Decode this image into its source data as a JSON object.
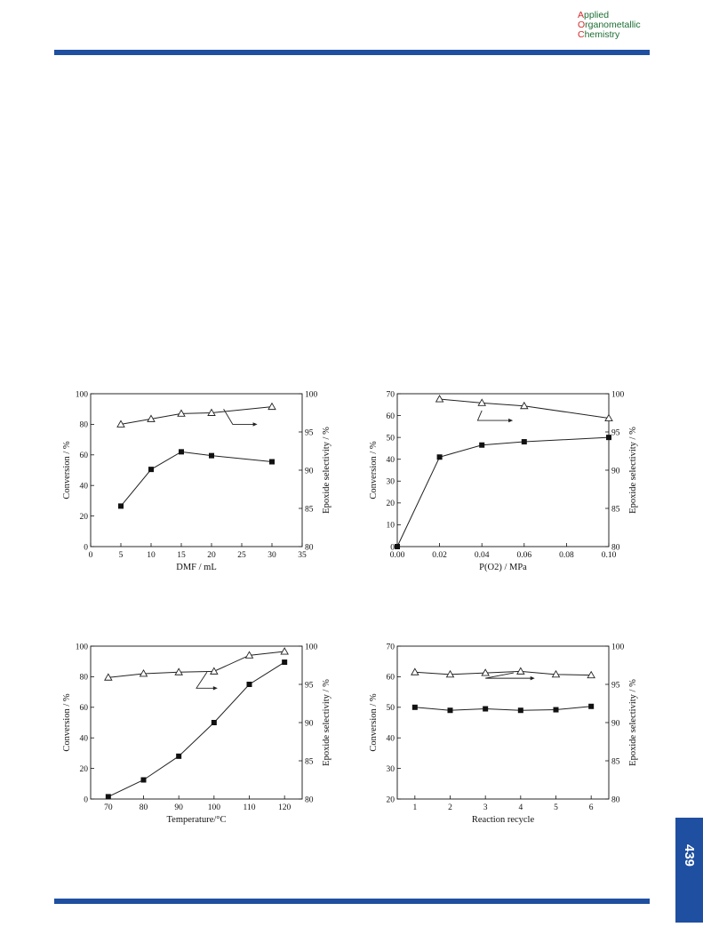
{
  "journal": {
    "line1_cap": "A",
    "line1_rest": "pplied",
    "line2_cap": "O",
    "line2_rest": "rganometallic",
    "line3_cap": "C",
    "line3_rest": "hemistry"
  },
  "page_number": "439",
  "colors": {
    "bar": "#1f4fa0",
    "journal_text": "#1b6e33",
    "journal_caps": "#d22a2a"
  },
  "chart_data": [
    {
      "type": "line",
      "xlabel": "DMF / mL",
      "ylabel": "Conversion / %",
      "y2label": "Epoxide selectivity / %",
      "xlim": [
        0,
        35
      ],
      "xticks": [
        0,
        5,
        10,
        15,
        20,
        25,
        30,
        35
      ],
      "ylim": [
        0,
        100
      ],
      "yticks": [
        0,
        20,
        40,
        60,
        80,
        100
      ],
      "y2lim": [
        80,
        100
      ],
      "y2ticks": [
        80,
        85,
        90,
        95,
        100
      ],
      "arrow_direction": "right",
      "series": [
        {
          "axis": "left",
          "marker": "filled-square",
          "x": [
            5,
            10,
            15,
            20,
            30
          ],
          "values": [
            26.5,
            50.5,
            62,
            59.5,
            55.5
          ]
        },
        {
          "axis": "right",
          "marker": "open-triangle",
          "x": [
            5,
            10,
            15,
            20,
            30
          ],
          "values": [
            96,
            96.7,
            97.4,
            97.5,
            98.3
          ]
        }
      ],
      "arrow": {
        "x1": 22,
        "y1": 98,
        "x2": 23.5,
        "y2": 96,
        "x3": 27,
        "y3": 96
      }
    },
    {
      "type": "line",
      "xlabel": "P(O2) / MPa",
      "ylabel": "Conversion / %",
      "y2label": "Epoxide selectivity / %",
      "xlim": [
        0,
        0.1
      ],
      "xticks": [
        0.0,
        0.02,
        0.04,
        0.06,
        0.08,
        0.1
      ],
      "xtick_labels": [
        "0.00",
        "0.02",
        "0.04",
        "0.06",
        "0.08",
        "0.10"
      ],
      "ylim": [
        0,
        70
      ],
      "yticks": [
        0,
        10,
        20,
        30,
        40,
        50,
        60,
        70
      ],
      "y2lim": [
        80,
        100
      ],
      "y2ticks": [
        80,
        85,
        90,
        95,
        100
      ],
      "series": [
        {
          "axis": "left",
          "marker": "filled-square",
          "x": [
            0.0,
            0.02,
            0.04,
            0.06,
            0.1
          ],
          "values": [
            0,
            41,
            46.5,
            48,
            50
          ]
        },
        {
          "axis": "right",
          "marker": "open-triangle",
          "x": [
            0.02,
            0.04,
            0.06,
            0.1
          ],
          "values": [
            99.3,
            98.8,
            98.4,
            96.8
          ]
        }
      ],
      "arrow": {
        "x1": 0.04,
        "y1": 97.8,
        "x2": 0.038,
        "y2": 96.5,
        "x3": 0.053,
        "y3": 96.5
      }
    },
    {
      "type": "line",
      "xlabel": "Temperature/°C",
      "ylabel": "Conversion / %",
      "y2label": "Epoxide selectivity / %",
      "xlim": [
        65,
        125
      ],
      "xticks": [
        70,
        80,
        90,
        100,
        110,
        120
      ],
      "ylim": [
        0,
        100
      ],
      "yticks": [
        0,
        20,
        40,
        60,
        80,
        100
      ],
      "y2lim": [
        80,
        100
      ],
      "y2ticks": [
        80,
        85,
        90,
        95,
        100
      ],
      "series": [
        {
          "axis": "left",
          "marker": "filled-square",
          "x": [
            70,
            80,
            90,
            100,
            110,
            120
          ],
          "values": [
            1.5,
            12.5,
            28,
            50,
            75,
            89.5
          ]
        },
        {
          "axis": "right",
          "marker": "open-triangle",
          "x": [
            70,
            80,
            90,
            100,
            110,
            120
          ],
          "values": [
            95.9,
            96.4,
            96.6,
            96.7,
            98.8,
            99.3
          ]
        }
      ],
      "arrow": {
        "x1": 98,
        "y1": 96.6,
        "x2": 95,
        "y2": 94.5,
        "x3": 100,
        "y3": 94.5
      }
    },
    {
      "type": "line",
      "xlabel": "Reaction recycle",
      "ylabel": "Conversion / %",
      "y2label": "Epoxide selectivity / %",
      "xlim": [
        0.5,
        6.5
      ],
      "xticks": [
        1,
        2,
        3,
        4,
        5,
        6
      ],
      "ylim": [
        20,
        70
      ],
      "yticks": [
        20,
        30,
        40,
        50,
        60,
        70
      ],
      "y2lim": [
        80,
        100
      ],
      "y2ticks": [
        80,
        85,
        90,
        95,
        100
      ],
      "series": [
        {
          "axis": "left",
          "marker": "filled-square",
          "x": [
            1,
            2,
            3,
            4,
            5,
            6
          ],
          "values": [
            50,
            49,
            49.5,
            49,
            49.2,
            50.3
          ]
        },
        {
          "axis": "right",
          "marker": "open-triangle",
          "x": [
            1,
            2,
            3,
            4,
            5,
            6
          ],
          "values": [
            96.6,
            96.3,
            96.5,
            96.7,
            96.3,
            96.2
          ]
        }
      ],
      "arrow": {
        "x1": 3.8,
        "y1": 96.5,
        "x2": 3.0,
        "y2": 95.8,
        "x3": 4.3,
        "y3": 95.8
      }
    }
  ]
}
